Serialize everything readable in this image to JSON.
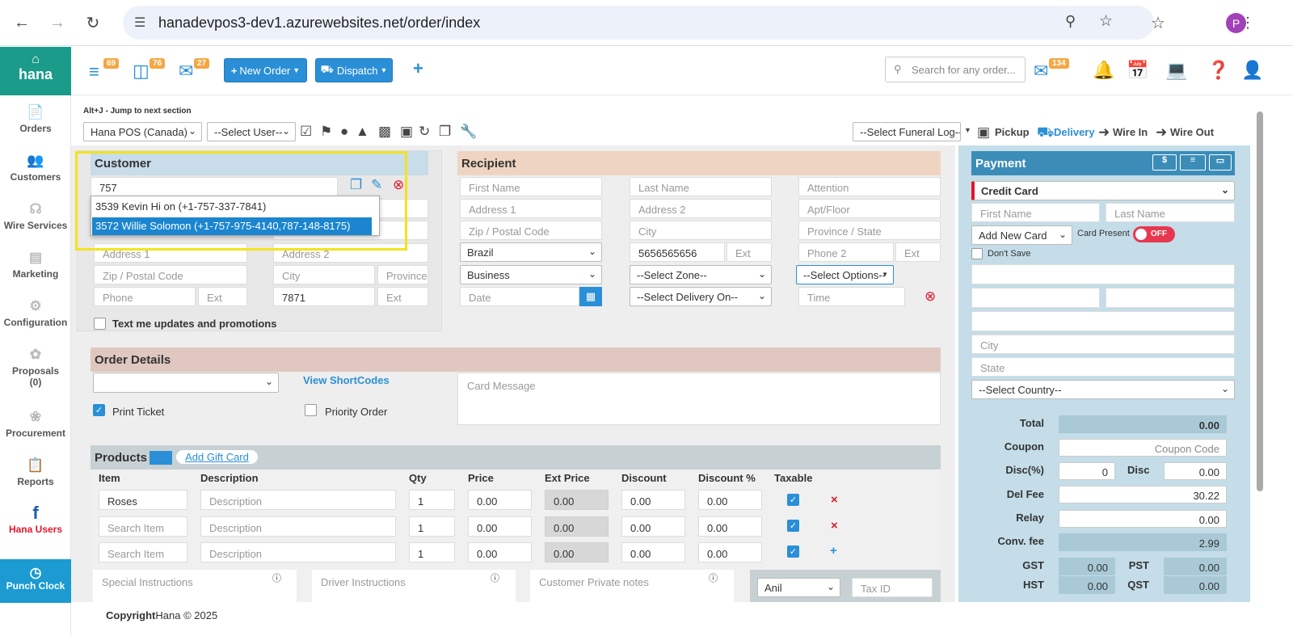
{
  "browser": {
    "url": "hanadevpos3-dev1.azurewebsites.net/order/index",
    "profile_initial": "P"
  },
  "sidebar": {
    "logo": "hana",
    "items": [
      {
        "label": "Orders",
        "icon": "orders-icon"
      },
      {
        "label": "Customers",
        "icon": "customers-icon"
      },
      {
        "label": "Wire Services",
        "icon": "wire-services-icon"
      },
      {
        "label": "Marketing",
        "icon": "marketing-icon"
      },
      {
        "label": "Configuration",
        "icon": "gear-icon"
      },
      {
        "label": "Proposals",
        "sub": "(0)",
        "icon": "proposals-icon"
      },
      {
        "label": "Procurement",
        "icon": "procurement-icon"
      },
      {
        "label": "Reports",
        "icon": "reports-icon"
      },
      {
        "label": "Hana Users",
        "icon": "facebook-icon"
      }
    ],
    "punch_clock": "Punch Clock"
  },
  "appbar": {
    "badges": {
      "orders": "69",
      "notes": "76",
      "chat": "27",
      "mail": "134"
    },
    "new_order": "New Order",
    "dispatch": "Dispatch",
    "plus": "+",
    "search_placeholder": "Search for any order..."
  },
  "toolbar": {
    "hint": "Alt+J - Jump to next section",
    "store": "Hana POS (Canada)",
    "user": "--Select User--",
    "funeral_log": "--Select Funeral Log--",
    "modes": [
      "Pickup",
      "Delivery",
      "Wire In",
      "Wire Out"
    ]
  },
  "customer": {
    "header": "Customer",
    "search_value": "757",
    "suggestions": [
      "3539 Kevin Hi on (+1-757-337-7841)",
      "3572 Willie Solomon (+1-757-975-4140,787-148-8175)"
    ],
    "address1": "Address 1",
    "address2": "Address 2",
    "zip": "Zip / Postal Code",
    "city": "City",
    "province": "Province",
    "phone": "Phone",
    "ext": "Ext",
    "phone2_value": "7871",
    "ext2": "Ext",
    "text_me": "Text me updates and promotions"
  },
  "recipient": {
    "header": "Recipient",
    "first_name": "First Name",
    "last_name": "Last Name",
    "attention": "Attention",
    "address1": "Address 1",
    "address2": "Address 2",
    "apt": "Apt/Floor",
    "zip": "Zip / Postal Code",
    "city": "City",
    "province": "Province / State",
    "country": "Brazil",
    "phone": "5656565656",
    "ext": "Ext",
    "phone2": "Phone 2",
    "ext2": "Ext",
    "location_type": "Business",
    "zone": "--Select Zone--",
    "options": "--Select Options--",
    "date": "Date",
    "delivery_on": "--Select Delivery On--",
    "time": "Time"
  },
  "order_details": {
    "header": "Order Details",
    "view_shortcodes": "View ShortCodes",
    "card_message": "Card Message",
    "print_ticket": "Print Ticket",
    "priority_order": "Priority Order"
  },
  "products": {
    "header": "Products",
    "add_gift_card": "Add Gift Card",
    "columns": [
      "Item",
      "Description",
      "Qty",
      "Price",
      "Ext Price",
      "Discount",
      "Discount %",
      "Taxable"
    ],
    "rows": [
      {
        "item": "Roses",
        "item_is_value": true,
        "description": "Description",
        "qty": "1",
        "price": "0.00",
        "ext": "0.00",
        "discount": "0.00",
        "discount_pct": "0.00",
        "action": "×"
      },
      {
        "item": "Search Item",
        "item_is_value": false,
        "description": "Description",
        "qty": "1",
        "price": "0.00",
        "ext": "0.00",
        "discount": "0.00",
        "discount_pct": "0.00",
        "action": "×"
      },
      {
        "item": "Search Item",
        "item_is_value": false,
        "description": "Description",
        "qty": "1",
        "price": "0.00",
        "ext": "0.00",
        "discount": "0.00",
        "discount_pct": "0.00",
        "action": "+"
      }
    ],
    "special_instructions": "Special Instructions",
    "driver_instructions": "Driver Instructions",
    "customer_notes": "Customer Private notes",
    "salesperson": "Anil",
    "tax_id": "Tax ID"
  },
  "payment": {
    "header": "Payment",
    "method": "Credit Card",
    "first_name": "First Name",
    "last_name": "Last Name",
    "card_select": "Add New Card",
    "card_present": "Card Present",
    "toggle": "OFF",
    "dont_save": "Don't Save",
    "city": "City",
    "state": "State",
    "country": "--Select Country--",
    "total_label": "Total",
    "total": "0.00",
    "coupon_label": "Coupon",
    "coupon_placeholder": "Coupon Code",
    "discpct_label": "Disc(%)",
    "discpct": "0",
    "disc_label": "Disc",
    "disc": "0.00",
    "delfee_label": "Del Fee",
    "delfee": "30.22",
    "relay_label": "Relay",
    "relay": "0.00",
    "conv_label": "Conv. fee",
    "conv": "2.99",
    "gst_label": "GST",
    "gst": "0.00",
    "pst_label": "PST",
    "pst": "0.00",
    "hst_label": "HST",
    "hst": "0.00",
    "qst_label": "QST",
    "qst": "0.00"
  },
  "footer": {
    "copyright_bold": "Copyright",
    "copyright": "Hana © 2025"
  }
}
